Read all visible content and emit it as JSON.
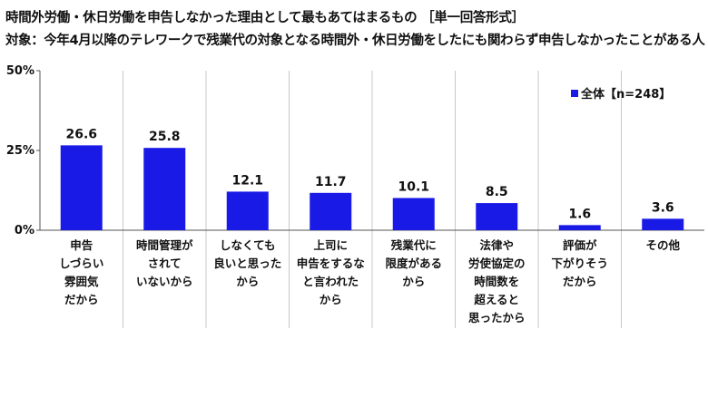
{
  "header": {
    "title": "時間外労働・休日労働を申告しなかった理由として最もあてはまるもの ［単一回答形式］",
    "subtitle": "対象：今年4月以降のテレワークで残業代の対象となる時間外・休日労働をしたにも関わらず申告しなかったことがある人"
  },
  "chart_data": {
    "type": "bar",
    "categories": [
      [
        "申告",
        "しづらい",
        "雰囲気",
        "だから"
      ],
      [
        "時間管理が",
        "されて",
        "いないから"
      ],
      [
        "しなくても",
        "良いと思った",
        "から"
      ],
      [
        "上司に",
        "申告をするな",
        "と言われた",
        "から"
      ],
      [
        "残業代に",
        "限度がある",
        "から"
      ],
      [
        "法律や",
        "労使協定の",
        "時間数を",
        "超えると",
        "思ったから"
      ],
      [
        "評価が",
        "下がりそう",
        "だから"
      ],
      [
        "その他"
      ]
    ],
    "series": [
      {
        "name": "全体【n=248】",
        "values": [
          26.6,
          25.8,
          12.1,
          11.7,
          10.1,
          8.5,
          1.6,
          3.6
        ]
      }
    ],
    "data_labels": [
      "26.6",
      "25.8",
      "12.1",
      "11.7",
      "10.1",
      "8.5",
      "1.6",
      "3.6"
    ],
    "ylim": [
      0,
      50
    ],
    "yticks": [
      {
        "value": 0,
        "label": "0%"
      },
      {
        "value": 25,
        "label": "25%"
      },
      {
        "value": 50,
        "label": "50%"
      }
    ],
    "grid": "vertical category separators",
    "legend_position": "top-right",
    "colors": {
      "bar": "#1a1ae6",
      "grid": "#c8c8c8",
      "axis": "#555555"
    }
  }
}
